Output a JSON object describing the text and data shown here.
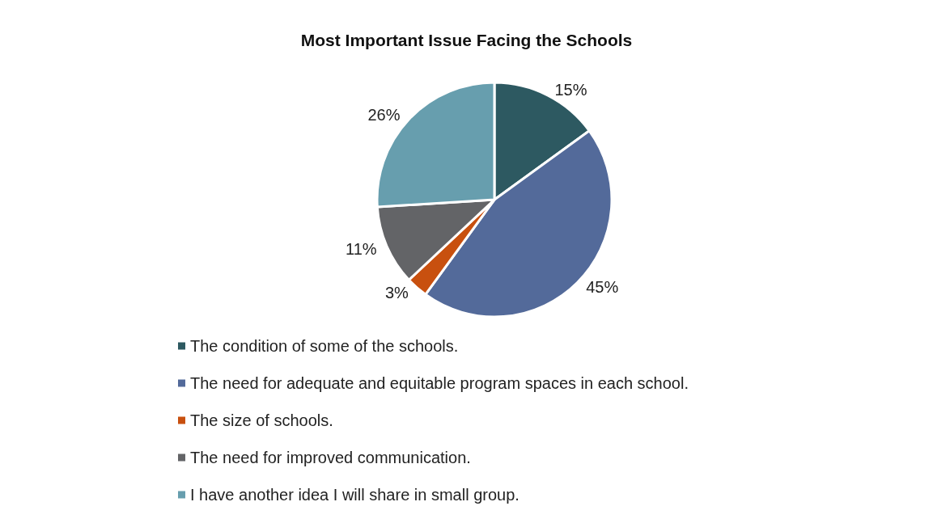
{
  "chart_data": {
    "type": "pie",
    "title": "Most Important Issue Facing the Schools",
    "categories": [
      "The condition of some of the schools.",
      "The need for adequate and equitable program spaces in each school.",
      "The size of schools.",
      "The need for improved communication.",
      "I have another idea I will share in small group."
    ],
    "values": [
      15,
      45,
      3,
      11,
      26
    ],
    "colors": [
      "#2d5961",
      "#536a9a",
      "#c8500f",
      "#636467",
      "#679eae"
    ],
    "value_labels": [
      "15%",
      "45%",
      "3%",
      "11%",
      "26%"
    ],
    "legend": "bottom"
  }
}
